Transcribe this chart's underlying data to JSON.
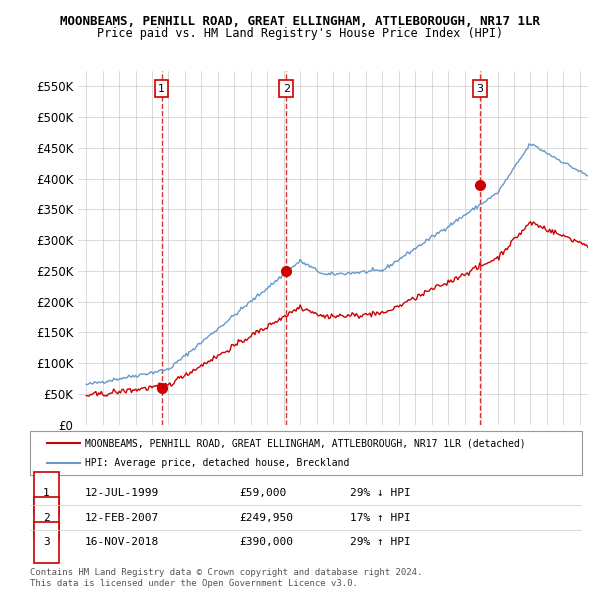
{
  "title": "MOONBEAMS, PENHILL ROAD, GREAT ELLINGHAM, ATTLEBOROUGH, NR17 1LR",
  "subtitle": "Price paid vs. HM Land Registry's House Price Index (HPI)",
  "ylim": [
    0,
    575000
  ],
  "yticks": [
    0,
    50000,
    100000,
    150000,
    200000,
    250000,
    300000,
    350000,
    400000,
    450000,
    500000,
    550000
  ],
  "ytick_labels": [
    "£0",
    "£50K",
    "£100K",
    "£150K",
    "£200K",
    "£250K",
    "£300K",
    "£350K",
    "£400K",
    "£450K",
    "£500K",
    "£550K"
  ],
  "transaction_prices": [
    59000,
    249950,
    390000
  ],
  "transaction_labels": [
    "1",
    "2",
    "3"
  ],
  "red_line_color": "#cc0000",
  "blue_line_color": "#6699cc",
  "vline_color": "#cc0000",
  "grid_color": "#cccccc",
  "background_color": "#ffffff",
  "legend_line1": "MOONBEAMS, PENHILL ROAD, GREAT ELLINGHAM, ATTLEBOROUGH, NR17 1LR (detached)",
  "legend_line2": "HPI: Average price, detached house, Breckland",
  "footer1": "Contains HM Land Registry data © Crown copyright and database right 2024.",
  "footer2": "This data is licensed under the Open Government Licence v3.0.",
  "table_rows": [
    [
      "1",
      "12-JUL-1999",
      "£59,000",
      "29% ↓ HPI"
    ],
    [
      "2",
      "12-FEB-2007",
      "£249,950",
      "17% ↑ HPI"
    ],
    [
      "3",
      "16-NOV-2018",
      "£390,000",
      "29% ↑ HPI"
    ]
  ]
}
